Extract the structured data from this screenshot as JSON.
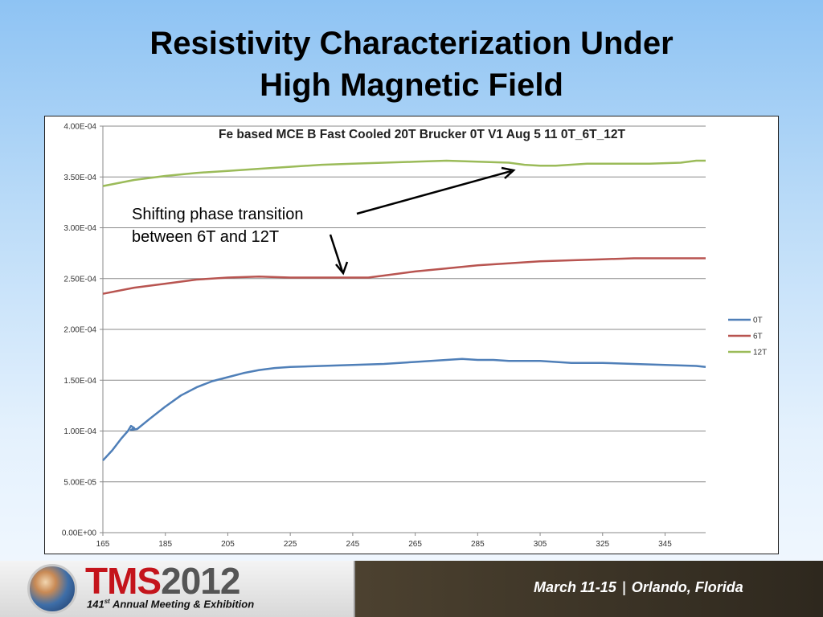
{
  "slide": {
    "title_line1": "Resistivity Characterization Under",
    "title_line2": "High Magnetic Field"
  },
  "annotation": {
    "line1": "Shifting phase transition",
    "line2": "between 6T and 12T"
  },
  "footer": {
    "logo_tms": "TMS",
    "logo_year": "2012",
    "ordinal_number": "141",
    "ordinal_suffix": "st",
    "subtitle_rest": " Annual Meeting & Exhibition",
    "dates": "March 11-15",
    "separator": "|",
    "location": "Orlando, Florida"
  },
  "chart_data": {
    "type": "line",
    "title": "Fe based MCE B Fast Cooled 20T Brucker 0T V1 Aug 5 11 0T_6T_12T",
    "xlabel": "",
    "ylabel": "",
    "xlim": [
      165,
      358
    ],
    "ylim": [
      0,
      0.0004
    ],
    "x_ticks": [
      165,
      185,
      205,
      225,
      245,
      265,
      285,
      305,
      325,
      345
    ],
    "x_tick_labels": [
      "165",
      "185",
      "205",
      "225",
      "245",
      "265",
      "285",
      "305",
      "325",
      "345"
    ],
    "y_ticks": [
      0,
      5e-05,
      0.0001,
      0.00015,
      0.0002,
      0.00025,
      0.0003,
      0.00035,
      0.0004
    ],
    "y_tick_labels": [
      "0.00E+00",
      "5.00E-05",
      "1.00E-04",
      "1.50E-04",
      "2.00E-04",
      "2.50E-04",
      "3.00E-04",
      "3.50E-04",
      "4.00E-04"
    ],
    "grid": "horizontal",
    "legend_placement": "right",
    "series": [
      {
        "name": "0T",
        "color": "#4f7fb8",
        "points": [
          [
            165,
            7.1e-05
          ],
          [
            168,
            8.1e-05
          ],
          [
            171,
            9.3e-05
          ],
          [
            173,
            0.0001
          ],
          [
            174,
            0.000105
          ],
          [
            175,
            0.000103
          ],
          [
            174,
            0.000101
          ],
          [
            176,
            0.000102
          ],
          [
            180,
            0.000112
          ],
          [
            185,
            0.000124
          ],
          [
            190,
            0.000135
          ],
          [
            195,
            0.000143
          ],
          [
            200,
            0.000149
          ],
          [
            205,
            0.000153
          ],
          [
            210,
            0.000157
          ],
          [
            215,
            0.00016
          ],
          [
            220,
            0.000162
          ],
          [
            225,
            0.000163
          ],
          [
            235,
            0.000164
          ],
          [
            245,
            0.000165
          ],
          [
            255,
            0.000166
          ],
          [
            265,
            0.000168
          ],
          [
            275,
            0.00017
          ],
          [
            280,
            0.000171
          ],
          [
            285,
            0.00017
          ],
          [
            290,
            0.00017
          ],
          [
            295,
            0.000169
          ],
          [
            305,
            0.000169
          ],
          [
            315,
            0.000167
          ],
          [
            325,
            0.000167
          ],
          [
            335,
            0.000166
          ],
          [
            345,
            0.000165
          ],
          [
            355,
            0.000164
          ],
          [
            358,
            0.000163
          ]
        ]
      },
      {
        "name": "6T",
        "color": "#b85450",
        "points": [
          [
            165,
            0.000235
          ],
          [
            175,
            0.000241
          ],
          [
            185,
            0.000245
          ],
          [
            195,
            0.000249
          ],
          [
            205,
            0.000251
          ],
          [
            215,
            0.000252
          ],
          [
            225,
            0.000251
          ],
          [
            235,
            0.000251
          ],
          [
            245,
            0.000251
          ],
          [
            250,
            0.000251
          ],
          [
            255,
            0.000253
          ],
          [
            265,
            0.000257
          ],
          [
            275,
            0.00026
          ],
          [
            285,
            0.000263
          ],
          [
            295,
            0.000265
          ],
          [
            305,
            0.000267
          ],
          [
            315,
            0.000268
          ],
          [
            325,
            0.000269
          ],
          [
            335,
            0.00027
          ],
          [
            345,
            0.00027
          ],
          [
            358,
            0.00027
          ]
        ]
      },
      {
        "name": "12T",
        "color": "#9bbb59",
        "points": [
          [
            165,
            0.000341
          ],
          [
            175,
            0.000347
          ],
          [
            185,
            0.000351
          ],
          [
            195,
            0.000354
          ],
          [
            205,
            0.000356
          ],
          [
            215,
            0.000358
          ],
          [
            225,
            0.00036
          ],
          [
            235,
            0.000362
          ],
          [
            245,
            0.000363
          ],
          [
            255,
            0.000364
          ],
          [
            265,
            0.000365
          ],
          [
            275,
            0.000366
          ],
          [
            285,
            0.000365
          ],
          [
            295,
            0.000364
          ],
          [
            300,
            0.000362
          ],
          [
            305,
            0.000361
          ],
          [
            310,
            0.000361
          ],
          [
            320,
            0.000363
          ],
          [
            330,
            0.000363
          ],
          [
            340,
            0.000363
          ],
          [
            350,
            0.000364
          ],
          [
            355,
            0.000366
          ],
          [
            358,
            0.000366
          ]
        ]
      }
    ]
  }
}
